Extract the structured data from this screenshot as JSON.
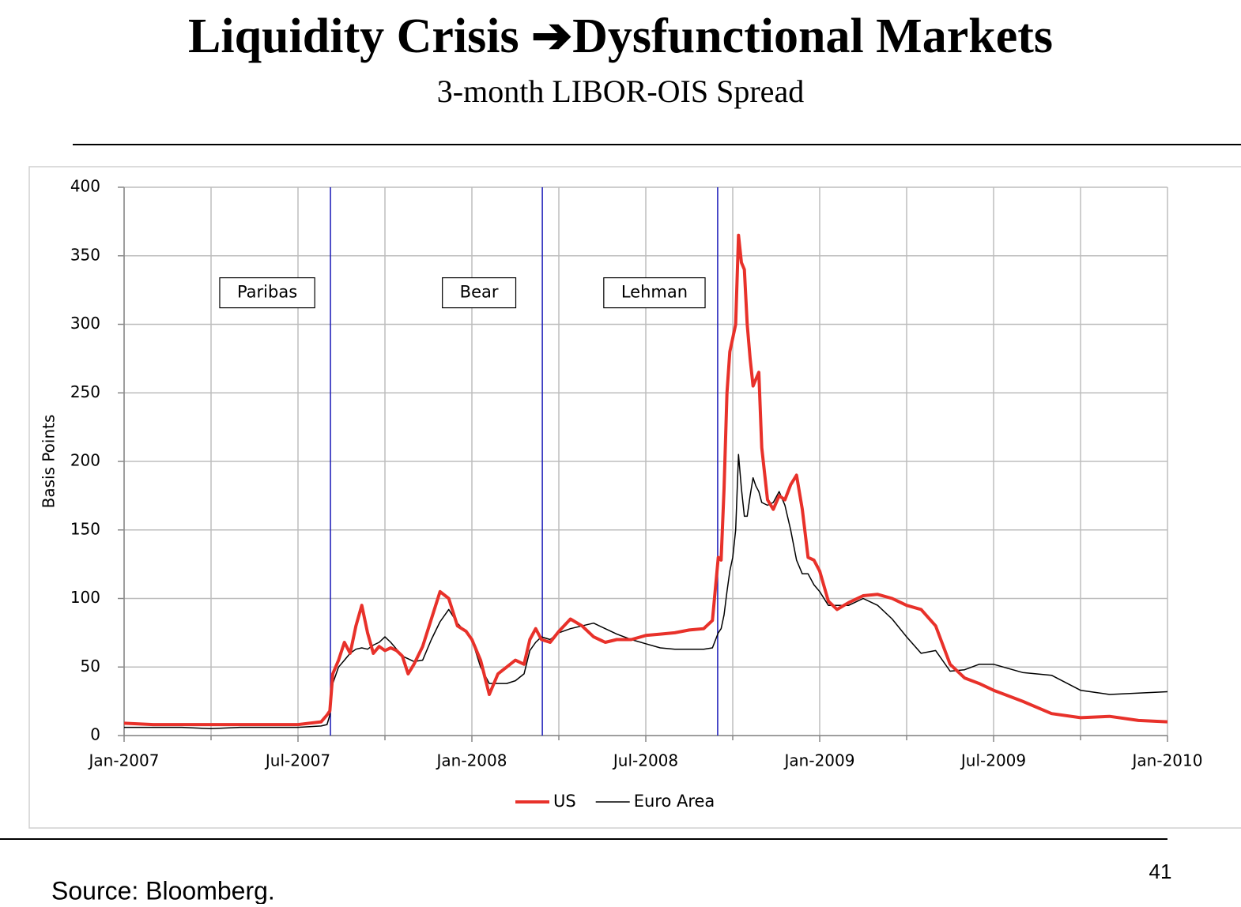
{
  "chart_data": {
    "type": "line",
    "title": "Liquidity Crisis ➔Dysfunctional Markets",
    "subtitle": "3-month LIBOR-OIS Spread",
    "y_label": "Basis Points",
    "x": [
      0,
      1,
      2,
      3,
      4,
      5,
      6,
      6.8,
      7.0,
      7.1,
      7.2,
      7.4,
      7.6,
      7.8,
      8.0,
      8.2,
      8.4,
      8.6,
      8.8,
      9.0,
      9.2,
      9.4,
      9.6,
      9.8,
      10.0,
      10.3,
      10.6,
      10.9,
      11.2,
      11.5,
      11.8,
      12.0,
      12.3,
      12.6,
      12.9,
      13.2,
      13.5,
      13.8,
      14.0,
      14.2,
      14.4,
      14.7,
      15.0,
      15.4,
      15.8,
      16.2,
      16.6,
      17.0,
      17.5,
      18.0,
      18.5,
      19.0,
      19.5,
      20.0,
      20.3,
      20.5,
      20.6,
      20.7,
      20.8,
      20.9,
      21.0,
      21.1,
      21.2,
      21.3,
      21.4,
      21.5,
      21.6,
      21.7,
      21.8,
      21.9,
      22.0,
      22.2,
      22.4,
      22.6,
      22.8,
      23.0,
      23.2,
      23.4,
      23.6,
      23.8,
      24.0,
      24.3,
      24.6,
      25.0,
      25.5,
      26.0,
      26.5,
      27.0,
      27.5,
      28.0,
      28.5,
      29.0,
      29.5,
      30.0,
      31,
      32,
      33,
      34,
      35,
      36
    ],
    "series": [
      {
        "name": "US",
        "color": "#e8312a",
        "width": 4,
        "values": [
          9,
          8,
          8,
          8,
          8,
          8,
          8,
          10,
          15,
          18,
          45,
          55,
          68,
          60,
          80,
          95,
          75,
          60,
          65,
          62,
          64,
          62,
          58,
          45,
          52,
          65,
          85,
          105,
          100,
          80,
          76,
          70,
          55,
          30,
          45,
          50,
          55,
          52,
          70,
          78,
          70,
          68,
          76,
          85,
          80,
          72,
          68,
          70,
          70,
          73,
          74,
          75,
          77,
          78,
          84,
          130,
          128,
          180,
          250,
          280,
          290,
          300,
          365,
          345,
          340,
          300,
          275,
          255,
          260,
          265,
          210,
          172,
          165,
          175,
          172,
          183,
          190,
          165,
          130,
          128,
          120,
          98,
          92,
          97,
          102,
          103,
          100,
          95,
          92,
          80,
          52,
          42,
          38,
          33,
          25,
          16,
          13,
          14,
          11,
          10
        ]
      },
      {
        "name": "Euro Area",
        "color": "#000000",
        "width": 1.5,
        "values": [
          6,
          6,
          6,
          5,
          6,
          6,
          6,
          7,
          8,
          15,
          38,
          50,
          55,
          60,
          63,
          64,
          63,
          66,
          68,
          72,
          68,
          63,
          58,
          56,
          54,
          55,
          70,
          83,
          92,
          82,
          75,
          70,
          50,
          38,
          38,
          38,
          40,
          45,
          62,
          68,
          72,
          70,
          75,
          78,
          80,
          82,
          78,
          74,
          70,
          67,
          64,
          63,
          63,
          63,
          64,
          75,
          78,
          88,
          105,
          120,
          130,
          150,
          205,
          180,
          160,
          160,
          175,
          188,
          182,
          178,
          170,
          168,
          170,
          178,
          168,
          150,
          128,
          118,
          118,
          110,
          105,
          95,
          95,
          95,
          100,
          95,
          85,
          72,
          60,
          62,
          47,
          48,
          52,
          52,
          46,
          44,
          33,
          30,
          31,
          32
        ]
      }
    ],
    "xlim": [
      0,
      36
    ],
    "xticks": [
      {
        "value": 0,
        "label": "Jan-2007"
      },
      {
        "value": 6,
        "label": "Jul-2007"
      },
      {
        "value": 12,
        "label": "Jan-2008"
      },
      {
        "value": 18,
        "label": "Jul-2008"
      },
      {
        "value": 24,
        "label": "Jan-2009"
      },
      {
        "value": 30,
        "label": "Jul-2009"
      },
      {
        "value": 36,
        "label": "Jan-2010"
      }
    ],
    "x_minor_ticks": [
      3,
      9,
      15,
      21,
      27,
      33
    ],
    "ylim": [
      0,
      400
    ],
    "yticks": [
      0,
      50,
      100,
      150,
      200,
      250,
      300,
      350,
      400
    ],
    "grid": true,
    "legend": "bottom",
    "event_color": "#1a1ab8",
    "events": [
      {
        "label": "Paribas",
        "x": 7.12
      },
      {
        "label": "Bear",
        "x": 14.43
      },
      {
        "label": "Lehman",
        "x": 20.48
      }
    ]
  },
  "footer": {
    "source": "Source: Bloomberg.",
    "page_number": "41"
  }
}
